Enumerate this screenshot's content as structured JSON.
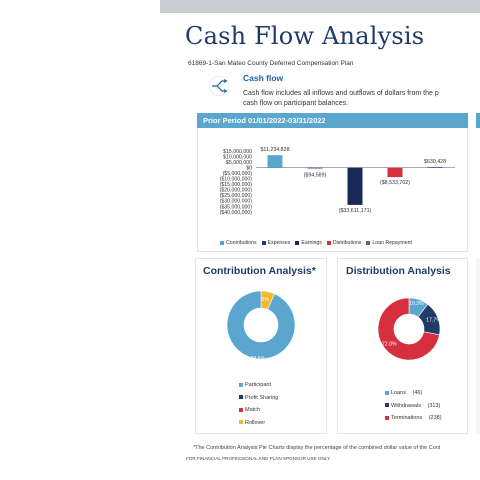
{
  "header": {
    "title": "Cash Flow Analysis"
  },
  "plan_name": "61869-1-San Mateo County Deferred Compensation Plan",
  "cash_flow": {
    "heading": "Cash flow",
    "description_line1": "Cash flow includes all inflows and outflows of dollars from the p",
    "description_line2": "cash flow on participant balances.",
    "icon": "flow-split-icon"
  },
  "period_label": "Prior Period 01/01/2022-03/31/2022",
  "colors": {
    "contributions": "#5aa6cf",
    "expenses": "#1f3b68",
    "earnings": "#1a2a57",
    "distributions": "#d6303f",
    "loan_repayment": "#8b4a9c",
    "profit_sharing": "#1f3b68",
    "match": "#d6303f",
    "rollover": "#f2b82e"
  },
  "chart_data": [
    {
      "type": "bar",
      "categories": [
        "Contributions",
        "Expenses",
        "Earnings",
        "Distributions",
        "Loan Repayment"
      ],
      "values": [
        11234828,
        -94589,
        -33611171,
        -8533702,
        630428
      ],
      "value_labels": [
        "$11,234,828",
        "($94,589)",
        "($33,611,171)",
        "($8,533,702)",
        "$630,428"
      ],
      "ylim": [
        -40000000,
        15000000
      ],
      "ytick_values": [
        15000000,
        10000000,
        5000000,
        0,
        -5000000,
        -10000000,
        -15000000,
        -20000000,
        -25000000,
        -30000000,
        -35000000,
        -40000000
      ],
      "yticks": [
        "$15,000,000",
        "$10,000,000",
        "$5,000,000",
        "$0",
        "($5,000,000)",
        "($10,000,000)",
        "($15,000,000)",
        "($20,000,000)",
        "($25,000,000)",
        "($30,000,000)",
        "($35,000,000)",
        "($40,000,000)"
      ],
      "legend": [
        "Contributions",
        "Expenses",
        "Earnings",
        "Distributions",
        "Loan Repayment"
      ],
      "legend_position": "bottom"
    },
    {
      "type": "pie",
      "title": "Contribution Analysis*",
      "labels": [
        "Participant",
        "Profit Sharing",
        "Match",
        "Rollover"
      ],
      "values": [
        93.5,
        0,
        0,
        6.5
      ],
      "slice_labels": [
        "93.5%",
        "",
        "",
        "6.5%"
      ]
    },
    {
      "type": "pie",
      "title": "Distribution Analysis",
      "labels": [
        "Loans",
        "Withdrawals",
        "Terminations"
      ],
      "counts": [
        "(46)",
        "(313)",
        "(238)"
      ],
      "values": [
        10.3,
        17.7,
        72.0
      ],
      "slice_labels": [
        "10.3%",
        "17.7%",
        "72.0%"
      ]
    }
  ],
  "footnote": "*The Contribution Analysis Pie Charts display the percentage of the combined dollar value of the Cont",
  "disclaimer": "FOR FINANCIAL PROFESSIONAL AND PLAN SPONSOR USE ONLY."
}
